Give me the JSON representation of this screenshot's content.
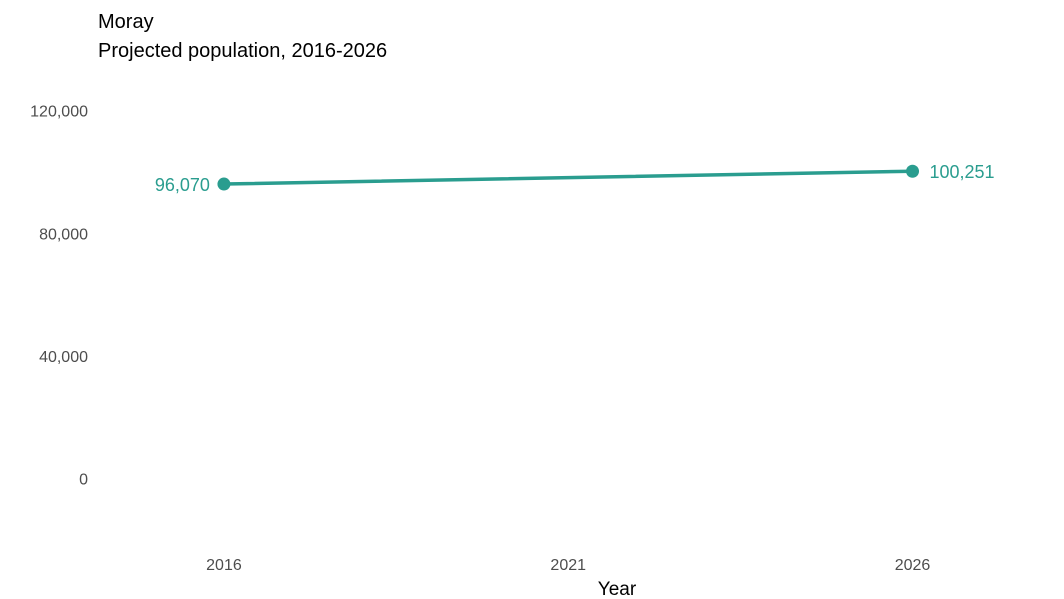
{
  "chart_data": {
    "type": "line",
    "title": "Moray",
    "subtitle": "Projected population, 2016-2026",
    "xlabel": "Year",
    "ylabel": "",
    "x": [
      2016,
      2026
    ],
    "x_ticks": [
      "2016",
      "2021",
      "2026"
    ],
    "y_ticks": [
      "0",
      "40,000",
      "80,000",
      "120,000"
    ],
    "y_tick_values": [
      0,
      40000,
      80000,
      120000
    ],
    "xlim": [
      2014.2,
      2028.2
    ],
    "ylim": [
      -20000,
      130000
    ],
    "series": [
      {
        "values": [
          96070,
          100251
        ],
        "labels": [
          "96,070",
          "100,251"
        ],
        "color": "#2a9d8f"
      }
    ],
    "grid": false,
    "legend": "none"
  }
}
